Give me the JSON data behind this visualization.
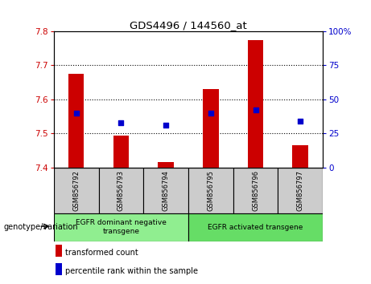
{
  "title": "GDS4496 / 144560_at",
  "samples": [
    "GSM856792",
    "GSM856793",
    "GSM856794",
    "GSM856795",
    "GSM856796",
    "GSM856797"
  ],
  "transformed_count": [
    7.675,
    7.495,
    7.415,
    7.63,
    7.775,
    7.465
  ],
  "percentile_rank": [
    40,
    33,
    31,
    40,
    42,
    34
  ],
  "ylim_left": [
    7.4,
    7.8
  ],
  "ylim_right": [
    0,
    100
  ],
  "yticks_left": [
    7.4,
    7.5,
    7.6,
    7.7,
    7.8
  ],
  "yticks_right": [
    0,
    25,
    50,
    75,
    100
  ],
  "bar_bottom": 7.4,
  "bar_color": "#cc0000",
  "dot_color": "#0000cc",
  "groups": [
    {
      "label": "EGFR dominant negative\ntransgene",
      "samples": [
        0,
        1,
        2
      ],
      "color": "#90ee90"
    },
    {
      "label": "EGFR activated transgene",
      "samples": [
        3,
        4,
        5
      ],
      "color": "#66dd66"
    }
  ],
  "xlabel_group": "genotype/variation",
  "legend_items": [
    {
      "label": "transformed count",
      "color": "#cc0000"
    },
    {
      "label": "percentile rank within the sample",
      "color": "#0000cc"
    }
  ],
  "grid_linestyle": "dotted",
  "background_sample": "#cccccc",
  "left_tick_color": "#cc0000",
  "right_tick_color": "#0000cc",
  "bar_width": 0.35,
  "dot_size": 25
}
